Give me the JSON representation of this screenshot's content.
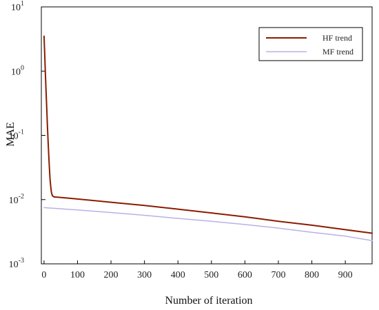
{
  "chart_data": {
    "type": "line",
    "xlabel": "Number of iteration",
    "ylabel": "MAE",
    "xlim": [
      -8,
      980
    ],
    "ylim": [
      0.001,
      10
    ],
    "yscale": "log",
    "x_ticks": [
      0,
      100,
      200,
      300,
      400,
      500,
      600,
      700,
      800,
      900
    ],
    "y_ticks": [
      {
        "value": 0.001,
        "base": "10",
        "exp": "-3"
      },
      {
        "value": 0.01,
        "base": "10",
        "exp": "-2"
      },
      {
        "value": 0.1,
        "base": "10",
        "exp": "-1"
      },
      {
        "value": 1,
        "base": "10",
        "exp": "0"
      },
      {
        "value": 10,
        "base": "10",
        "exp": "1"
      }
    ],
    "grid": false,
    "legend_position": "top-right",
    "series": [
      {
        "name": "HF trend",
        "color": "#8b1a00",
        "x": [
          0,
          2,
          4,
          6,
          8,
          10,
          12,
          14,
          16,
          18,
          20,
          22,
          25,
          30,
          50,
          100,
          200,
          300,
          400,
          500,
          600,
          700,
          800,
          900,
          980
        ],
        "y": [
          3.5,
          1.8,
          0.95,
          0.5,
          0.27,
          0.15,
          0.085,
          0.05,
          0.031,
          0.021,
          0.016,
          0.013,
          0.0115,
          0.011,
          0.0108,
          0.0102,
          0.0091,
          0.0081,
          0.0071,
          0.0062,
          0.0054,
          0.0046,
          0.004,
          0.0034,
          0.003
        ]
      },
      {
        "name": "MF trend",
        "color": "#b8b0e8",
        "x": [
          0,
          100,
          200,
          300,
          400,
          500,
          600,
          700,
          800,
          900,
          980
        ],
        "y": [
          0.0075,
          0.0069,
          0.0063,
          0.0057,
          0.0051,
          0.0046,
          0.0041,
          0.0036,
          0.0031,
          0.0027,
          0.0023
        ]
      }
    ]
  }
}
